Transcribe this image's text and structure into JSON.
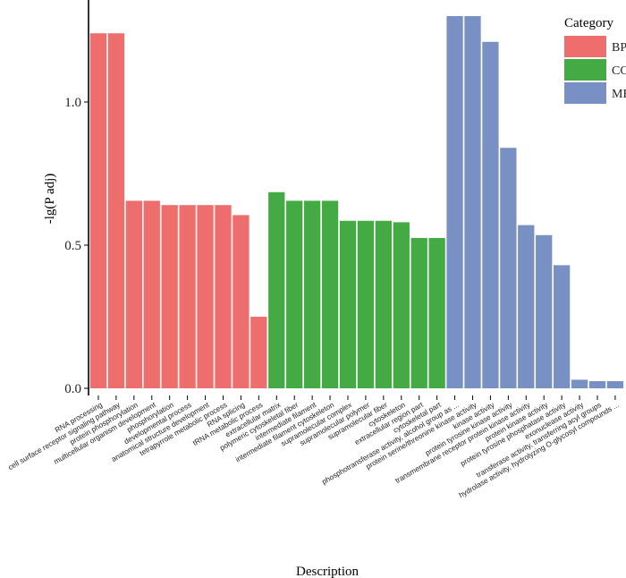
{
  "chart_data": {
    "type": "bar",
    "xlabel": "Description",
    "ylabel": "-lg(P adj)",
    "ylim": [
      -0.06,
      1.38
    ],
    "yticks": [
      "0.0",
      "0.5",
      "1.0"
    ],
    "grid": false,
    "legend": {
      "title": "Category",
      "placement": "top-right"
    },
    "series": [
      {
        "name": "BP",
        "color": "#ee6e6e",
        "categories": [
          "RNA processing",
          "cell surface receptor signaling pathway",
          "protein phosphorylation",
          "multicellular organism development",
          "phosphorylation",
          "developmental process",
          "anatomical structure development",
          "tetrapyrrole metabolic process",
          "RNA splicing",
          "tRNA metabolic process"
        ],
        "values": [
          1.24,
          1.24,
          0.655,
          0.655,
          0.64,
          0.64,
          0.64,
          0.64,
          0.605,
          0.25
        ]
      },
      {
        "name": "CC",
        "color": "#44ab44",
        "categories": [
          "extracellular matrix",
          "polymeric cytoskeletal fiber",
          "intermediate filament",
          "intermediate filament cytoskeleton",
          "supramolecular complex",
          "supramolecular polymer",
          "supramolecular fiber",
          "cytoskeleton",
          "extracellular region part",
          "cytoskeletal part"
        ],
        "values": [
          0.685,
          0.655,
          0.655,
          0.655,
          0.585,
          0.585,
          0.585,
          0.58,
          0.525,
          0.525
        ]
      },
      {
        "name": "MF",
        "color": "#7890c4",
        "categories": [
          "phosphotransferase activity, alcohol group as ...",
          "protein serine/threonine kinase activity",
          "kinase activity",
          "protein tyrosine kinase activity",
          "transmembrane receptor protein kinase activity",
          "protein kinase activity",
          "protein tyrosine phosphatase activity",
          "exonuclease activity",
          "transferase activity, transferring acyl groups",
          "hydrolase activity, hydrolyzing O-glycosyl compounds ..."
        ],
        "values": [
          1.3,
          1.3,
          1.21,
          0.84,
          0.57,
          0.535,
          0.43,
          0.03,
          0.025,
          0.025
        ]
      }
    ]
  }
}
